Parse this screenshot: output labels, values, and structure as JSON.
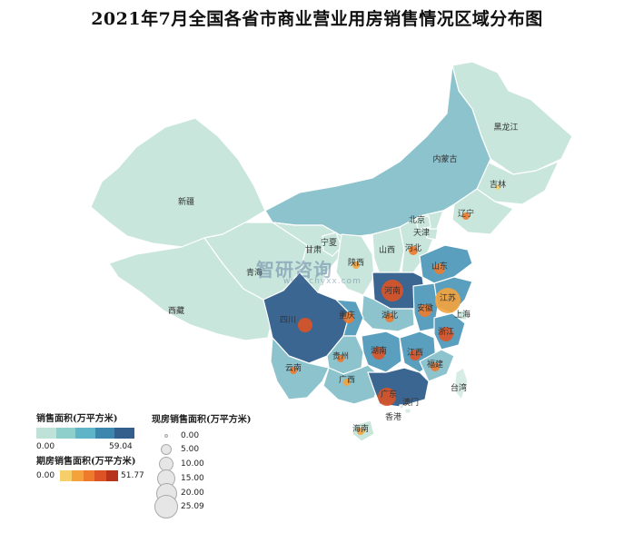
{
  "title": "2021年7月全国各省市商业营业用房销售情况区域分布图",
  "colors": {
    "area_ramp": [
      "#bfe2d8",
      "#8ecfcb",
      "#5fb4c8",
      "#3d86ad",
      "#345e8c"
    ],
    "area_light": "#c8e6dc",
    "area_pale": "#d6ece5",
    "area_mid": "#8dc3cd",
    "area_dark": "#3b6691",
    "area_med": "#5b9fbe",
    "future_ramp": [
      "#f7cf6a",
      "#f4a23c",
      "#ee7a2c",
      "#dd5326",
      "#b8331d"
    ],
    "bubble_fill": "#e6e6e6"
  },
  "watermark": {
    "brand": "智研咨询",
    "url": "www.chyxx.com"
  },
  "legend": {
    "area": {
      "title": "销售面积(万平方米)",
      "min": "0.00",
      "max": "59.04"
    },
    "future": {
      "title": "期房销售面积(万平方米)",
      "min": "0.00",
      "max": "51.77"
    },
    "current": {
      "title": "现房销售面积(万平方米)",
      "values": [
        "0.00",
        "5.00",
        "10.00",
        "15.00",
        "20.00",
        "25.09"
      ]
    }
  },
  "provinces": [
    {
      "name": "黑龙江",
      "shade": "light"
    },
    {
      "name": "吉林",
      "shade": "light"
    },
    {
      "name": "辽宁",
      "shade": "light"
    },
    {
      "name": "内蒙古",
      "shade": "mid"
    },
    {
      "name": "新疆",
      "shade": "light"
    },
    {
      "name": "西藏",
      "shade": "light"
    },
    {
      "name": "青海",
      "shade": "light"
    },
    {
      "name": "甘肃",
      "shade": "light"
    },
    {
      "name": "宁夏",
      "shade": "light"
    },
    {
      "name": "陕西",
      "shade": "light"
    },
    {
      "name": "山西",
      "shade": "light"
    },
    {
      "name": "河北",
      "shade": "light"
    },
    {
      "name": "北京",
      "shade": "light"
    },
    {
      "name": "天津",
      "shade": "light"
    },
    {
      "name": "山东",
      "shade": "med"
    },
    {
      "name": "河南",
      "shade": "dark"
    },
    {
      "name": "江苏",
      "shade": "med"
    },
    {
      "name": "安徽",
      "shade": "med"
    },
    {
      "name": "上海",
      "shade": "light"
    },
    {
      "name": "浙江",
      "shade": "med"
    },
    {
      "name": "湖北",
      "shade": "mid"
    },
    {
      "name": "四川",
      "shade": "dark"
    },
    {
      "name": "重庆",
      "shade": "med"
    },
    {
      "name": "湖南",
      "shade": "med"
    },
    {
      "name": "江西",
      "shade": "med"
    },
    {
      "name": "福建",
      "shade": "mid"
    },
    {
      "name": "贵州",
      "shade": "mid"
    },
    {
      "name": "云南",
      "shade": "mid"
    },
    {
      "name": "广西",
      "shade": "mid"
    },
    {
      "name": "广东",
      "shade": "dark"
    },
    {
      "name": "台湾",
      "shade": "pale"
    },
    {
      "name": "香港",
      "shade": "pale"
    },
    {
      "name": "澳门",
      "shade": "pale"
    },
    {
      "name": "海南",
      "shade": "light"
    }
  ]
}
